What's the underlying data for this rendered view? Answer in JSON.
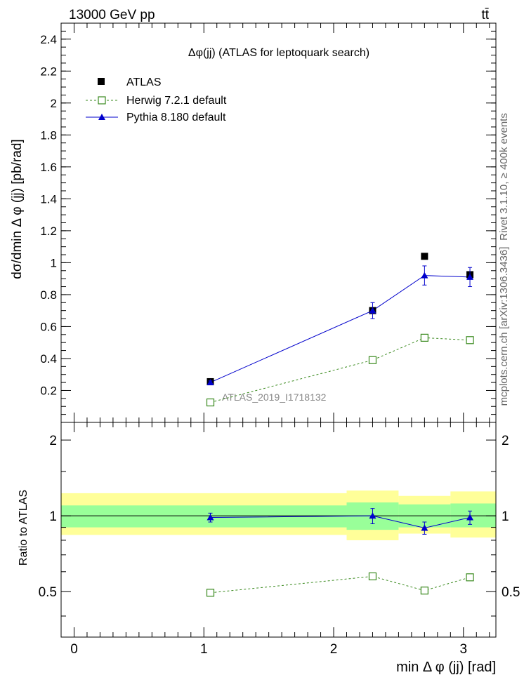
{
  "header": {
    "energy": "13000 GeV pp",
    "process": "tt̄"
  },
  "side_labels": {
    "rivet": "Rivet 3.1.10, ≥ 400k events",
    "mcplots": "mcplots.cern.ch [arXiv:1306.3436]"
  },
  "chart_data": [
    {
      "type": "scatter",
      "title": "Δφ(jj) (ATLAS for leptoquark search)",
      "watermark": "ATLAS_2019_I1718132",
      "xlabel": "min Δ φ (jj) [rad]",
      "ylabel": "dσ/dmin Δ φ (jj) [pb/rad]",
      "xlim": [
        -0.1,
        3.25
      ],
      "ylim": [
        0,
        2.5
      ],
      "yticks": [
        "0",
        "0.2",
        "0.4",
        "0.6",
        "0.8",
        "1",
        "1.2",
        "1.4",
        "1.6",
        "1.8",
        "2",
        "2.2",
        "2.4"
      ],
      "xticks": [
        "0",
        "1",
        "2",
        "3"
      ],
      "legend_position": "top-left",
      "x": [
        1.05,
        2.3,
        2.7,
        3.05
      ],
      "series": [
        {
          "name": "ATLAS",
          "values": [
            0.255,
            0.7,
            1.04,
            0.925
          ],
          "errors": [
            0.005,
            0.01,
            0.01,
            0.01
          ],
          "marker": "filled-square",
          "color": "#000000"
        },
        {
          "name": "Herwig 7.2.1 default",
          "values": [
            0.125,
            0.39,
            0.53,
            0.515
          ],
          "errors": [
            0.005,
            0.01,
            0.01,
            0.01
          ],
          "marker": "open-square",
          "line": "dashed",
          "color": "#3a8a1e"
        },
        {
          "name": "Pythia 8.180 default",
          "values": [
            0.25,
            0.7,
            0.92,
            0.91
          ],
          "errors": [
            0.01,
            0.05,
            0.06,
            0.06
          ],
          "marker": "triangle",
          "line": "solid",
          "color": "#0000cc"
        }
      ]
    },
    {
      "type": "scatter",
      "ylabel": "Ratio to ATLAS",
      "xlabel": "min Δ φ (jj) [rad]",
      "xlim": [
        -0.1,
        3.25
      ],
      "ylim": [
        0.33,
        2.35
      ],
      "yticks": [
        "0.5",
        "1",
        "2"
      ],
      "xticks": [
        "0",
        "1",
        "2",
        "3"
      ],
      "bands": [
        {
          "x_range": [
            -0.1,
            2.1
          ],
          "inner": [
            0.9,
            1.1
          ],
          "outer": [
            0.84,
            1.23
          ]
        },
        {
          "x_range": [
            2.1,
            2.5
          ],
          "inner": [
            0.88,
            1.13
          ],
          "outer": [
            0.8,
            1.26
          ]
        },
        {
          "x_range": [
            2.5,
            2.9
          ],
          "inner": [
            0.9,
            1.11
          ],
          "outer": [
            0.85,
            1.2
          ]
        },
        {
          "x_range": [
            2.9,
            3.25
          ],
          "inner": [
            0.9,
            1.12
          ],
          "outer": [
            0.82,
            1.25
          ]
        }
      ],
      "x": [
        1.05,
        2.3,
        2.7,
        3.05
      ],
      "series": [
        {
          "name": "Herwig 7.2.1 default",
          "values": [
            0.495,
            0.575,
            0.505,
            0.57
          ],
          "errors": [
            0.01,
            0.01,
            0.01,
            0.01
          ],
          "marker": "open-square",
          "line": "dashed",
          "color": "#3a8a1e"
        },
        {
          "name": "Pythia 8.180 default",
          "values": [
            0.985,
            1.0,
            0.895,
            0.985
          ],
          "errors": [
            0.04,
            0.07,
            0.05,
            0.06
          ],
          "marker": "triangle",
          "line": "solid",
          "color": "#0000cc"
        }
      ],
      "colors": {
        "inner_band": "#99ff99",
        "outer_band": "#ffff99",
        "herwig": "#3a8a1e",
        "pythia": "#0000cc",
        "data": "#000000"
      }
    }
  ]
}
